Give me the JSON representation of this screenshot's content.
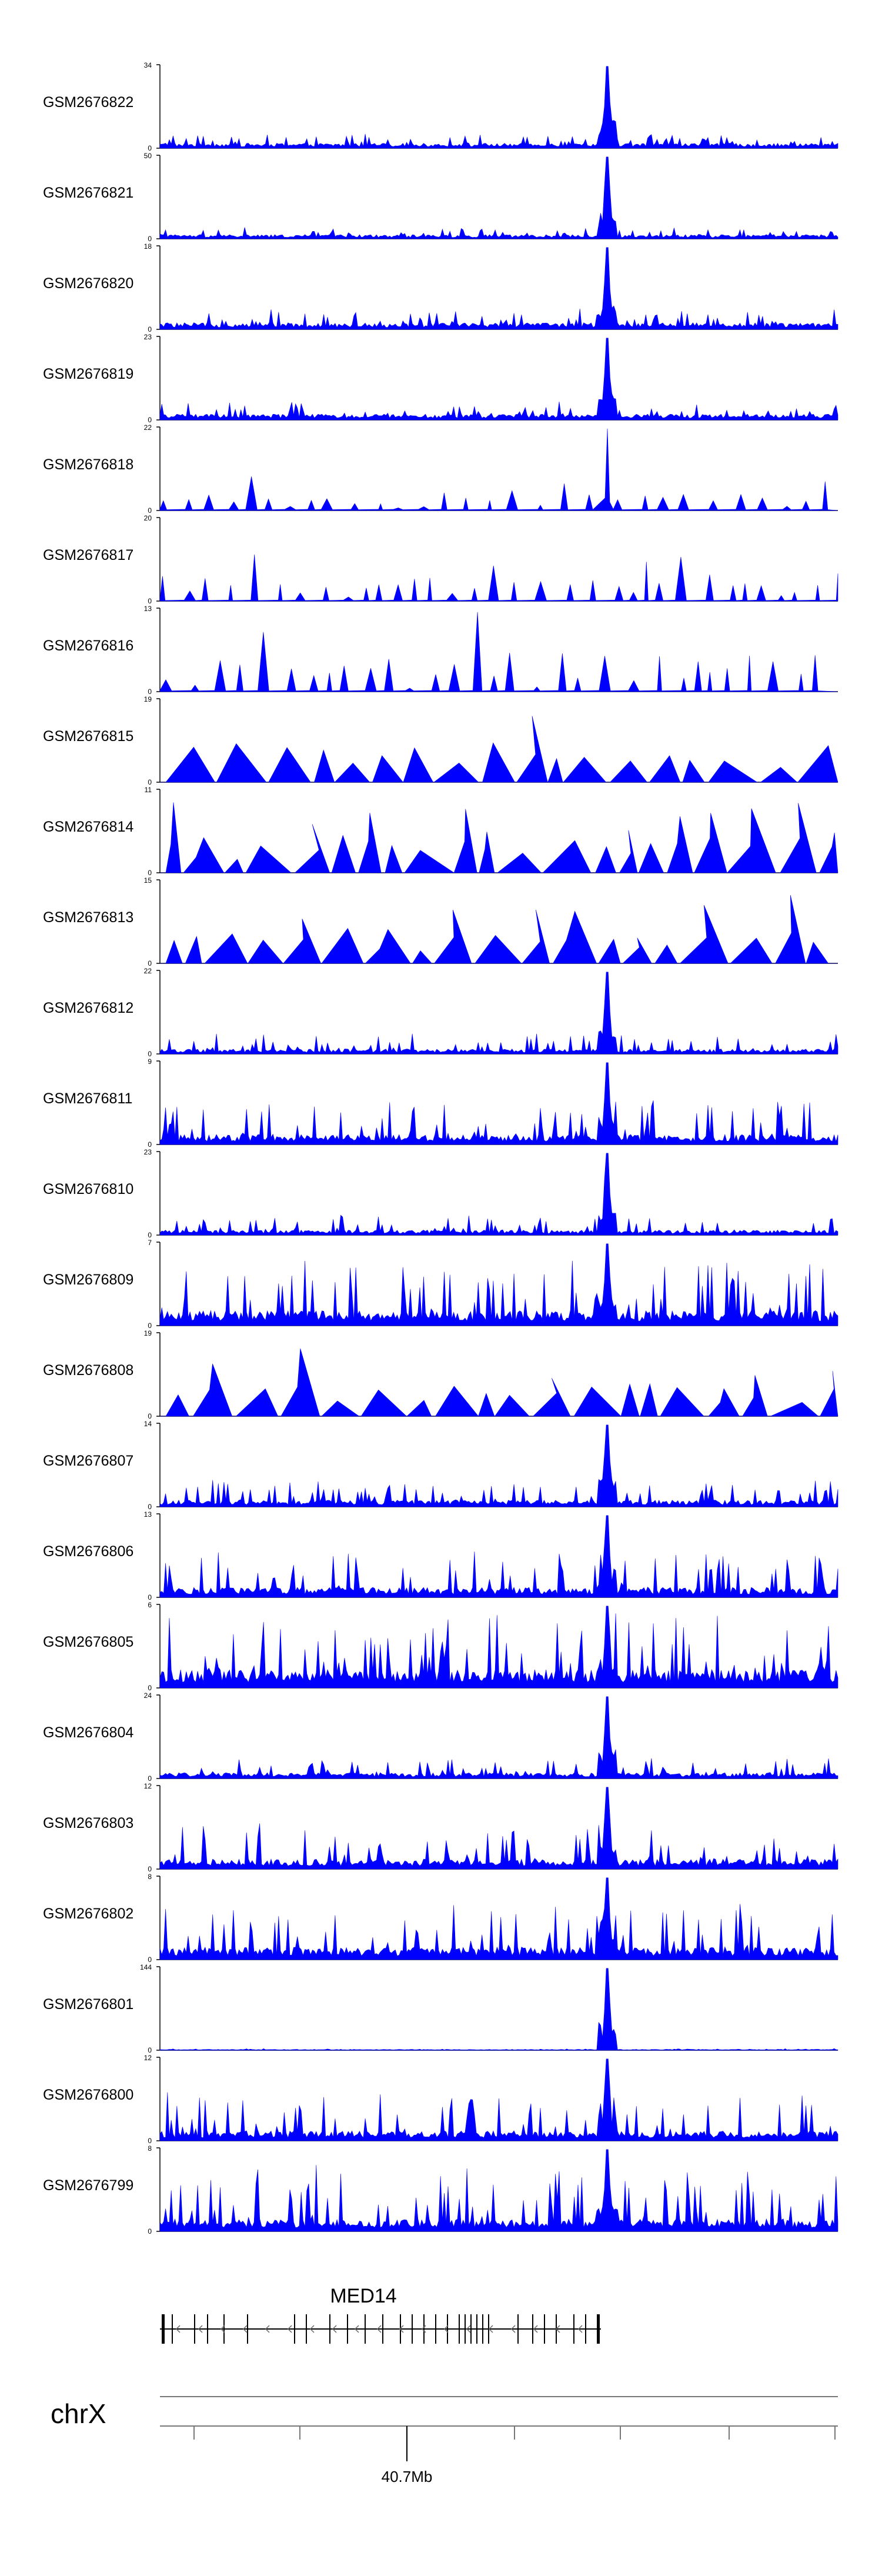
{
  "chart_data": {
    "type": "area",
    "fill_color": "#0000ff",
    "axis_color": "#000000",
    "shared_x_range": "chrX around 40.7Mb",
    "tracks": [
      {
        "name": "GSM2676822",
        "ymax": "34",
        "ymin": "0",
        "peak": 0.66,
        "style": "dense",
        "base": 0.06,
        "spiky": 0.12
      },
      {
        "name": "GSM2676821",
        "ymax": "50",
        "ymin": "0",
        "peak": 0.66,
        "style": "dense",
        "base": 0.05,
        "spiky": 0.1
      },
      {
        "name": "GSM2676820",
        "ymax": "18",
        "ymin": "0",
        "peak": 0.66,
        "style": "dense",
        "base": 0.08,
        "spiky": 0.18
      },
      {
        "name": "GSM2676819",
        "ymax": "23",
        "ymin": "0",
        "peak": 0.66,
        "style": "dense",
        "base": 0.07,
        "spiky": 0.16
      },
      {
        "name": "GSM2676818",
        "ymax": "22",
        "ymin": "0",
        "peak": 0.66,
        "style": "sparse",
        "base": 0.05,
        "spiky": 0.35
      },
      {
        "name": "GSM2676817",
        "ymax": "20",
        "ymin": "0",
        "peak": 0.0,
        "style": "sparse",
        "base": 0.04,
        "spiky": 0.55
      },
      {
        "name": "GSM2676816",
        "ymax": "13",
        "ymin": "0",
        "peak": 0.0,
        "style": "sparse",
        "base": 0.05,
        "spiky": 0.75
      },
      {
        "name": "GSM2676815",
        "ymax": "19",
        "ymin": "0",
        "peak": 0.0,
        "style": "triangles",
        "base": 0.03,
        "spiky": 0.85
      },
      {
        "name": "GSM2676814",
        "ymax": "11",
        "ymin": "0",
        "peak": 0.0,
        "style": "triangles",
        "base": 0.05,
        "spiky": 0.8
      },
      {
        "name": "GSM2676813",
        "ymax": "15",
        "ymin": "0",
        "peak": 0.0,
        "style": "triangles",
        "base": 0.03,
        "spiky": 0.8
      },
      {
        "name": "GSM2676812",
        "ymax": "22",
        "ymin": "0",
        "peak": 0.66,
        "style": "dense",
        "base": 0.06,
        "spiky": 0.2
      },
      {
        "name": "GSM2676811",
        "ymax": "9",
        "ymin": "0",
        "peak": 0.66,
        "style": "dense",
        "base": 0.12,
        "spiky": 0.45
      },
      {
        "name": "GSM2676810",
        "ymax": "23",
        "ymin": "0",
        "peak": 0.66,
        "style": "dense",
        "base": 0.06,
        "spiky": 0.18
      },
      {
        "name": "GSM2676809",
        "ymax": "7",
        "ymin": "0",
        "peak": 0.66,
        "style": "dense",
        "base": 0.18,
        "spiky": 0.65
      },
      {
        "name": "GSM2676808",
        "ymax": "19",
        "ymin": "0",
        "peak": 0.0,
        "style": "triangles",
        "base": 0.04,
        "spiky": 0.7
      },
      {
        "name": "GSM2676807",
        "ymax": "14",
        "ymin": "0",
        "peak": 0.66,
        "style": "dense",
        "base": 0.08,
        "spiky": 0.25
      },
      {
        "name": "GSM2676806",
        "ymax": "13",
        "ymin": "0",
        "peak": 0.66,
        "style": "dense",
        "base": 0.12,
        "spiky": 0.45
      },
      {
        "name": "GSM2676805",
        "ymax": "6",
        "ymin": "0",
        "peak": 0.66,
        "style": "dense",
        "base": 0.22,
        "spiky": 0.7
      },
      {
        "name": "GSM2676804",
        "ymax": "24",
        "ymin": "0",
        "peak": 0.66,
        "style": "dense",
        "base": 0.07,
        "spiky": 0.18
      },
      {
        "name": "GSM2676803",
        "ymax": "12",
        "ymin": "0",
        "peak": 0.66,
        "style": "dense",
        "base": 0.12,
        "spiky": 0.45
      },
      {
        "name": "GSM2676802",
        "ymax": "8",
        "ymin": "0",
        "peak": 0.66,
        "style": "dense",
        "base": 0.15,
        "spiky": 0.55
      },
      {
        "name": "GSM2676801",
        "ymax": "144",
        "ymin": "0",
        "peak": 0.66,
        "style": "flat",
        "base": 0.01,
        "spiky": 0.01
      },
      {
        "name": "GSM2676800",
        "ymax": "12",
        "ymin": "0",
        "peak": 0.66,
        "style": "dense",
        "base": 0.12,
        "spiky": 0.5
      },
      {
        "name": "GSM2676799",
        "ymax": "8",
        "ymin": "0",
        "peak": 0.66,
        "style": "dense",
        "base": 0.15,
        "spiky": 0.65
      }
    ],
    "gene": {
      "name": "MED14",
      "strand": "-"
    },
    "chromosome": "chrX",
    "tick_label": "40.7Mb"
  }
}
